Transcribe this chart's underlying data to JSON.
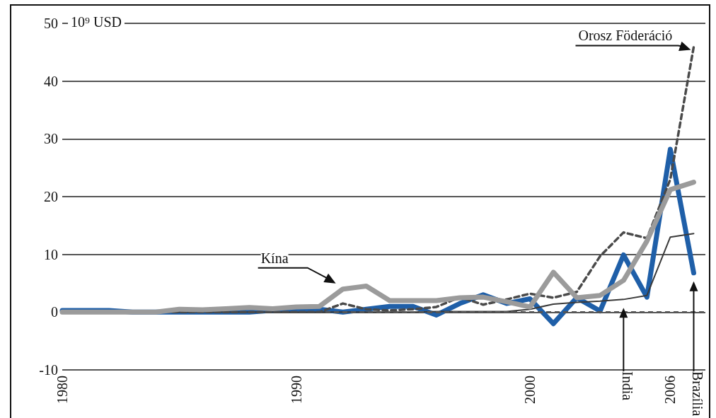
{
  "chart_data": {
    "type": "line",
    "ylabel": "10⁹ USD",
    "x": [
      1980,
      1981,
      1982,
      1983,
      1984,
      1985,
      1986,
      1987,
      1988,
      1989,
      1990,
      1991,
      1992,
      1993,
      1994,
      1995,
      1996,
      1997,
      1998,
      1999,
      2000,
      2001,
      2002,
      2003,
      2004,
      2005,
      2006,
      2007
    ],
    "series": [
      {
        "name": "Brazília",
        "color": "#1f5fa8",
        "values": [
          0.3,
          0.3,
          0.3,
          0,
          0,
          0,
          0,
          0,
          0,
          0.3,
          0.5,
          0.5,
          0,
          0.5,
          1,
          1,
          -0.5,
          1.5,
          3,
          1.5,
          2.3,
          -2,
          2.5,
          0.2,
          9.9,
          2.6,
          28.2,
          6.8
        ]
      },
      {
        "name": "India",
        "color": "#3a3a3a",
        "values": [
          0,
          0,
          0,
          0,
          0,
          0,
          0,
          0,
          0,
          0,
          0,
          0,
          0,
          0,
          0,
          0,
          0.1,
          0.1,
          0.1,
          0.1,
          0.5,
          1.4,
          1.7,
          1.9,
          2.2,
          2.9,
          13,
          13.6
        ]
      },
      {
        "name": "Orosz Föderáció",
        "color": "#4a4a4a",
        "line_style": "dashed",
        "values": [
          0,
          0,
          0,
          0,
          0,
          0,
          0,
          0,
          0,
          0,
          0,
          0,
          1.5,
          0.5,
          0.3,
          0.5,
          0.9,
          2.6,
          1.3,
          2.2,
          3.2,
          2.5,
          3.5,
          9.7,
          13.8,
          12.8,
          23,
          45.9
        ]
      },
      {
        "name": "Kína",
        "color": "#9b9b9b",
        "values": [
          0,
          0,
          0,
          0,
          0,
          0.5,
          0.4,
          0.6,
          0.8,
          0.6,
          0.9,
          1,
          4,
          4.5,
          2,
          2,
          2,
          2.5,
          2.6,
          1.8,
          0.9,
          6.9,
          2.5,
          2.9,
          5.5,
          12.3,
          21.2,
          22.5
        ]
      }
    ],
    "xlim": [
      1980,
      2007.5
    ],
    "xticks": [
      1980,
      1990,
      2000,
      2006
    ],
    "ylim": [
      -10,
      50
    ],
    "yticks": [
      -10,
      0,
      10,
      20,
      30,
      40,
      50
    ],
    "grid": "y",
    "marker": "none",
    "line_style": "solid",
    "legend": false,
    "ref_lines": [
      {
        "axis": "y",
        "value": 0,
        "color": "#555555",
        "line_style": "dashed"
      }
    ]
  }
}
